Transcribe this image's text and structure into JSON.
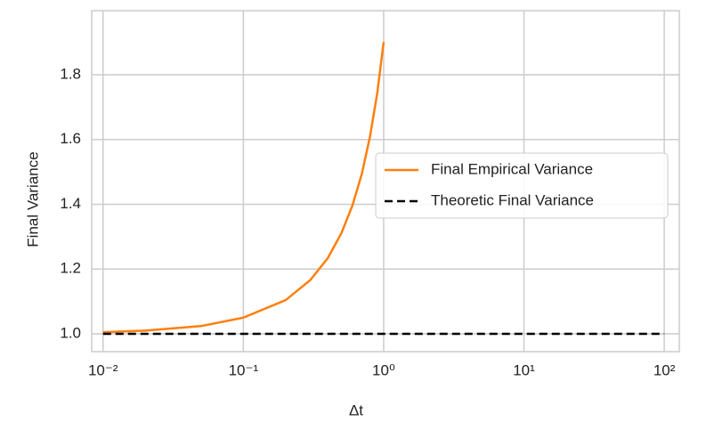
{
  "chart_data": {
    "type": "line",
    "xlabel": "Δt",
    "ylabel": "Final Variance",
    "log_x": true,
    "grid": true,
    "legend_position": "right",
    "xlim": [
      0.0083,
      128
    ],
    "ylim": [
      0.945,
      1.998
    ],
    "xticks": [
      {
        "value": 0.01,
        "label": "10⁻²"
      },
      {
        "value": 0.1,
        "label": "10⁻¹"
      },
      {
        "value": 1,
        "label": "10⁰"
      },
      {
        "value": 10,
        "label": "10¹"
      },
      {
        "value": 100,
        "label": "10²"
      }
    ],
    "yticks": [
      {
        "value": 1,
        "label": "1.0"
      },
      1.2,
      1.4,
      1.6,
      1.8
    ],
    "series": [
      {
        "name": "Final Empirical Variance",
        "color": "#ff7f0e",
        "dash": "solid",
        "x": [
          0.01,
          0.02,
          0.05,
          0.1,
          0.2,
          0.3,
          0.4,
          0.5,
          0.6,
          0.7,
          0.8,
          0.9,
          1.0
        ],
        "values": [
          1.005,
          1.01,
          1.024,
          1.05,
          1.104,
          1.166,
          1.234,
          1.311,
          1.397,
          1.495,
          1.61,
          1.743,
          1.901
        ]
      },
      {
        "name": "Theoretic Final Variance",
        "color": "#000000",
        "dash": "dashed",
        "x": [
          0.01,
          100
        ],
        "values": [
          1.0,
          1.0
        ]
      }
    ]
  }
}
